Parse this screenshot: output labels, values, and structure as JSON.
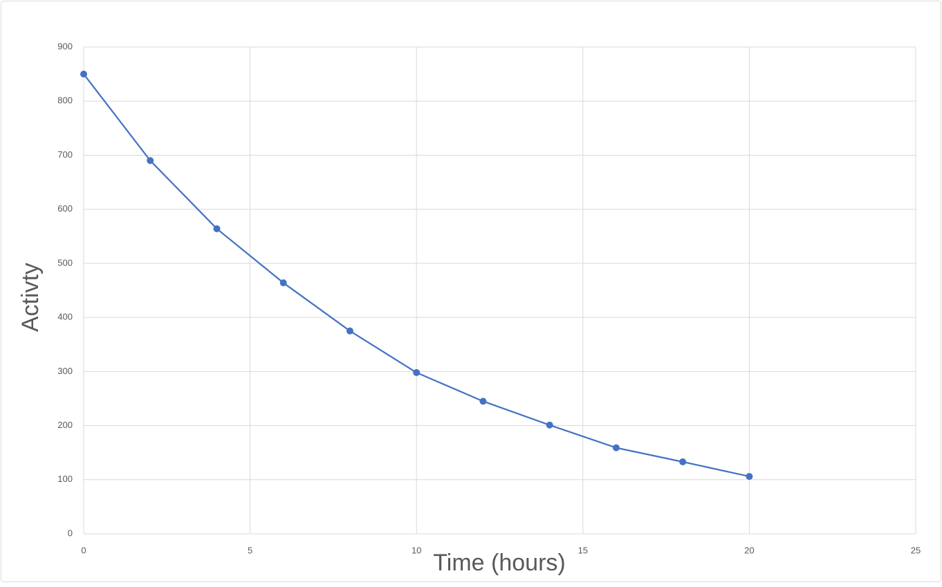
{
  "chart_data": {
    "type": "line",
    "x_label": "Time (hours)",
    "y_label": "Activty",
    "x": [
      0,
      2,
      4,
      6,
      8,
      10,
      12,
      14,
      16,
      18,
      20
    ],
    "series": [
      {
        "name": "Activity",
        "color": "#4472c4",
        "values": [
          850,
          690,
          564,
          464,
          375,
          298,
          245,
          201,
          159,
          133,
          106
        ]
      }
    ],
    "xlim": [
      0,
      25
    ],
    "xticks": [
      0,
      5,
      10,
      15,
      20,
      25
    ],
    "ylim": [
      0,
      900
    ],
    "yticks": [
      0,
      100,
      200,
      300,
      400,
      500,
      600,
      700,
      800,
      900
    ],
    "grid": true,
    "markers": true
  }
}
